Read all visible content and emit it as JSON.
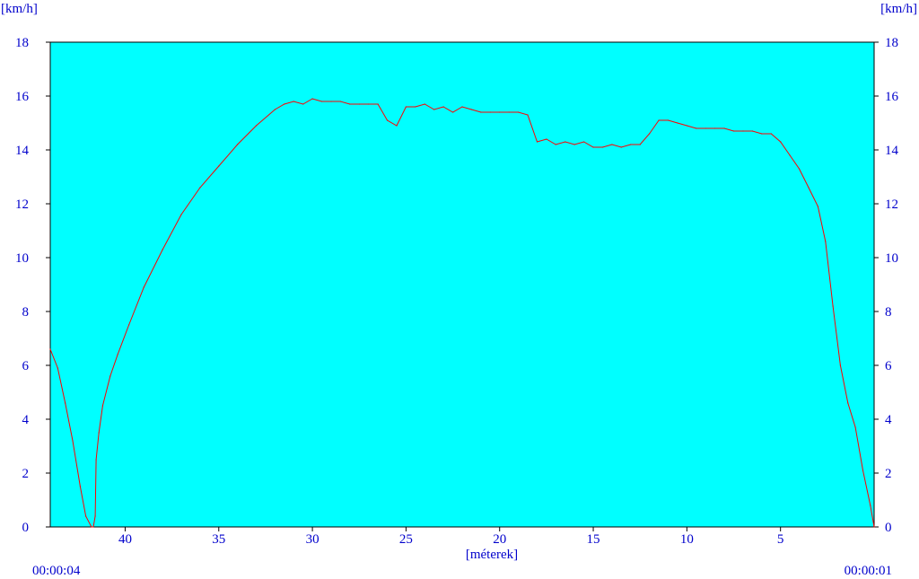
{
  "colors": {
    "plot_background": "#00ffff",
    "line": "#ff0000",
    "text": "#0000cc",
    "frame": "#000000"
  },
  "chart_data": {
    "type": "line",
    "title": "",
    "left_unit_label": "[km/h]",
    "right_unit_label": "[km/h]",
    "xlabel": "[méterek]",
    "ylabel": "",
    "xlim": [
      44,
      0
    ],
    "ylim": [
      0,
      18
    ],
    "x_ticks": [
      40,
      35,
      30,
      25,
      20,
      15,
      10,
      5
    ],
    "y_ticks": [
      0,
      2,
      4,
      6,
      8,
      10,
      12,
      14,
      16,
      18
    ],
    "start_time": "00:00:04",
    "end_time": "00:00:01",
    "grid": false,
    "series": [
      {
        "x": [
          44,
          43.6,
          43.2,
          42.8,
          42.4,
          42.1,
          41.8,
          41.7,
          41.6,
          41.55,
          41.4,
          41.2,
          40.8,
          40.4,
          39.8,
          39,
          38,
          37,
          36,
          35,
          34,
          33,
          32,
          31.5,
          31,
          30.5,
          30,
          29.5,
          29,
          28.5,
          28,
          27.5,
          27,
          26.5,
          26,
          25.5,
          25,
          24.5,
          24,
          23.5,
          23,
          22.5,
          22,
          21.5,
          21,
          20.5,
          20,
          19.5,
          19,
          18.5,
          18,
          17.5,
          17,
          16.5,
          16,
          15.5,
          15,
          14.5,
          14,
          13.5,
          13,
          12.5,
          12,
          11.5,
          11,
          10.5,
          10,
          9.5,
          9,
          8.5,
          8,
          7.5,
          7,
          6.5,
          6,
          5.5,
          5,
          4.5,
          4,
          3.5,
          3,
          2.6,
          2.2,
          1.8,
          1.4,
          1,
          0.6,
          0.2,
          0
        ],
        "y": [
          6.6,
          5.9,
          4.6,
          3.2,
          1.5,
          0.4,
          0,
          0,
          0.4,
          2.5,
          3.5,
          4.5,
          5.6,
          6.4,
          7.5,
          8.9,
          10.3,
          11.6,
          12.6,
          13.4,
          14.2,
          14.9,
          15.5,
          15.7,
          15.8,
          15.7,
          15.9,
          15.8,
          15.8,
          15.8,
          15.7,
          15.7,
          15.7,
          15.7,
          15.1,
          14.9,
          15.6,
          15.6,
          15.7,
          15.5,
          15.6,
          15.4,
          15.6,
          15.5,
          15.4,
          15.4,
          15.4,
          15.4,
          15.4,
          15.3,
          14.3,
          14.4,
          14.2,
          14.3,
          14.2,
          14.3,
          14.1,
          14.1,
          14.2,
          14.1,
          14.2,
          14.2,
          14.6,
          15.1,
          15.1,
          15.0,
          14.9,
          14.8,
          14.8,
          14.8,
          14.8,
          14.7,
          14.7,
          14.7,
          14.6,
          14.6,
          14.3,
          13.8,
          13.3,
          12.6,
          11.9,
          10.6,
          8.2,
          6.0,
          4.6,
          3.7,
          2.1,
          0.8,
          0
        ]
      }
    ]
  }
}
